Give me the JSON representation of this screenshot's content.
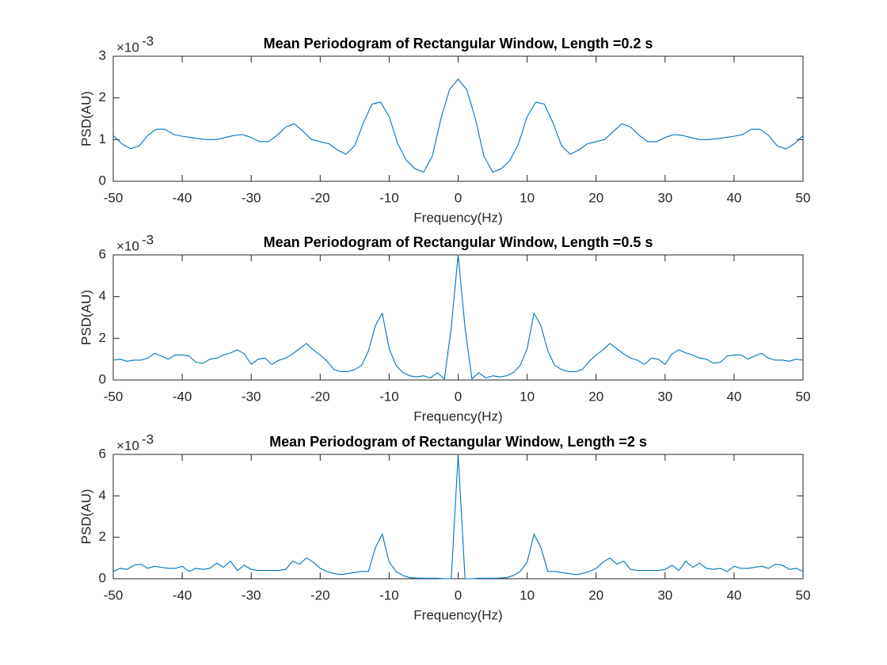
{
  "chart_data": [
    {
      "type": "line",
      "title": "Mean Periodogram of Rectangular Window, Length =0.2 s",
      "xlabel": "Frequency(Hz)",
      "ylabel": "PSD(AU)",
      "y_scale_base": "×10",
      "y_scale_exponent": "-3",
      "color": "#0072bd",
      "x": [
        -50,
        -48.75,
        -47.5,
        -46.25,
        -45,
        -43.75,
        -42.5,
        -41.25,
        -40,
        -38.75,
        -37.5,
        -36.25,
        -35,
        -33.75,
        -32.5,
        -31.25,
        -30,
        -28.75,
        -27.5,
        -26.25,
        -25,
        -23.75,
        -22.5,
        -21.25,
        -20,
        -18.75,
        -17.5,
        -16.25,
        -15,
        -13.75,
        -12.5,
        -11.25,
        -10,
        -8.75,
        -7.5,
        -6.25,
        -5,
        -3.75,
        -2.5,
        -1.25,
        0,
        1.25,
        2.5,
        3.75,
        5,
        6.25,
        7.5,
        8.75,
        10,
        11.25,
        12.5,
        13.75,
        15,
        16.25,
        17.5,
        18.75,
        20,
        21.25,
        22.5,
        23.75,
        25,
        26.25,
        27.5,
        28.75,
        30,
        31.25,
        32.5,
        33.75,
        35,
        36.25,
        37.5,
        38.75,
        40,
        41.25,
        42.5,
        43.75,
        45,
        46.25,
        47.5,
        48.75,
        50
      ],
      "values": [
        1.1,
        0.9,
        0.78,
        0.85,
        1.1,
        1.25,
        1.25,
        1.12,
        1.08,
        1.05,
        1.02,
        1.0,
        1.0,
        1.05,
        1.1,
        1.12,
        1.05,
        0.95,
        0.95,
        1.1,
        1.3,
        1.38,
        1.2,
        1.0,
        0.95,
        0.9,
        0.75,
        0.65,
        0.85,
        1.4,
        1.85,
        1.9,
        1.55,
        0.9,
        0.5,
        0.3,
        0.22,
        0.6,
        1.5,
        2.2,
        2.45,
        2.2,
        1.5,
        0.6,
        0.22,
        0.3,
        0.5,
        0.9,
        1.55,
        1.9,
        1.85,
        1.4,
        0.85,
        0.65,
        0.75,
        0.9,
        0.95,
        1.0,
        1.2,
        1.38,
        1.3,
        1.1,
        0.95,
        0.95,
        1.05,
        1.12,
        1.1,
        1.05,
        1.0,
        1.0,
        1.02,
        1.05,
        1.08,
        1.12,
        1.25,
        1.25,
        1.1,
        0.85,
        0.78,
        0.9,
        1.1
      ],
      "xlim": [
        -50,
        50
      ],
      "xticks": [
        -50,
        -40,
        -30,
        -20,
        -10,
        0,
        10,
        20,
        30,
        40,
        50
      ],
      "ylim": [
        0,
        3
      ],
      "yticks": [
        0,
        1,
        2,
        3
      ],
      "grid": false
    },
    {
      "type": "line",
      "title": "Mean Periodogram of Rectangular Window, Length =0.5 s",
      "xlabel": "Frequency(Hz)",
      "ylabel": "PSD(AU)",
      "y_scale_base": "×10",
      "y_scale_exponent": "-3",
      "color": "#0072bd",
      "x": [
        -50,
        -49,
        -48,
        -47,
        -46,
        -45,
        -44,
        -43,
        -42,
        -41,
        -40,
        -39,
        -38,
        -37,
        -36,
        -35,
        -34,
        -33,
        -32,
        -31,
        -30,
        -29,
        -28,
        -27,
        -26,
        -25,
        -24,
        -23,
        -22,
        -21,
        -20,
        -19,
        -18,
        -17,
        -16,
        -15,
        -14,
        -13,
        -12,
        -11,
        -10,
        -9,
        -8,
        -7,
        -6,
        -5,
        -4,
        -3,
        -2,
        -1,
        0,
        1,
        2,
        3,
        4,
        5,
        6,
        7,
        8,
        9,
        10,
        11,
        12,
        13,
        14,
        15,
        16,
        17,
        18,
        19,
        20,
        21,
        22,
        23,
        24,
        25,
        26,
        27,
        28,
        29,
        30,
        31,
        32,
        33,
        34,
        35,
        36,
        37,
        38,
        39,
        40,
        41,
        42,
        43,
        44,
        45,
        46,
        47,
        48,
        49,
        50
      ],
      "values": [
        0.95,
        1.0,
        0.9,
        0.95,
        0.95,
        1.05,
        1.28,
        1.15,
        1.0,
        1.2,
        1.2,
        1.15,
        0.85,
        0.8,
        1.0,
        1.05,
        1.2,
        1.3,
        1.45,
        1.25,
        0.75,
        1.0,
        1.05,
        0.75,
        0.95,
        1.05,
        1.25,
        1.5,
        1.75,
        1.45,
        1.2,
        0.9,
        0.5,
        0.4,
        0.4,
        0.5,
        0.7,
        1.4,
        2.6,
        3.2,
        1.5,
        0.7,
        0.35,
        0.2,
        0.15,
        0.2,
        0.1,
        0.35,
        0.05,
        2.5,
        6.0,
        2.5,
        0.05,
        0.35,
        0.1,
        0.2,
        0.15,
        0.2,
        0.35,
        0.7,
        1.5,
        3.2,
        2.6,
        1.4,
        0.7,
        0.5,
        0.4,
        0.4,
        0.5,
        0.9,
        1.2,
        1.45,
        1.75,
        1.5,
        1.25,
        1.05,
        0.95,
        0.75,
        1.05,
        1.0,
        0.75,
        1.25,
        1.45,
        1.3,
        1.2,
        1.05,
        1.0,
        0.8,
        0.85,
        1.15,
        1.2,
        1.2,
        1.0,
        1.15,
        1.28,
        1.05,
        0.95,
        0.95,
        0.9,
        1.0,
        0.95
      ],
      "xlim": [
        -50,
        50
      ],
      "xticks": [
        -50,
        -40,
        -30,
        -20,
        -10,
        0,
        10,
        20,
        30,
        40,
        50
      ],
      "ylim": [
        0,
        6
      ],
      "yticks": [
        0,
        2,
        4,
        6
      ],
      "grid": false
    },
    {
      "type": "line",
      "title": "Mean Periodogram of Rectangular Window, Length =2 s",
      "xlabel": "Frequency(Hz)",
      "ylabel": "PSD(AU)",
      "y_scale_base": "×10",
      "y_scale_exponent": "-3",
      "color": "#0072bd",
      "x": [
        -50,
        -49,
        -48,
        -47,
        -46,
        -45,
        -44,
        -43,
        -42,
        -41,
        -40,
        -39,
        -38,
        -37,
        -36,
        -35,
        -34,
        -33,
        -32,
        -31,
        -30,
        -29,
        -28,
        -27,
        -26,
        -25,
        -24,
        -23,
        -22,
        -21,
        -20,
        -19,
        -18,
        -17,
        -16,
        -15,
        -14,
        -13,
        -12,
        -11,
        -10,
        -9,
        -8,
        -7,
        -6,
        -5,
        -4,
        -3,
        -2,
        -1,
        0,
        1,
        2,
        3,
        4,
        5,
        6,
        7,
        8,
        9,
        10,
        11,
        12,
        13,
        14,
        15,
        16,
        17,
        18,
        19,
        20,
        21,
        22,
        23,
        24,
        25,
        26,
        27,
        28,
        29,
        30,
        31,
        32,
        33,
        34,
        35,
        36,
        37,
        38,
        39,
        40,
        41,
        42,
        43,
        44,
        45,
        46,
        47,
        48,
        49,
        50
      ],
      "values": [
        0.35,
        0.5,
        0.45,
        0.65,
        0.7,
        0.5,
        0.6,
        0.55,
        0.5,
        0.5,
        0.6,
        0.35,
        0.5,
        0.45,
        0.5,
        0.75,
        0.55,
        0.85,
        0.4,
        0.65,
        0.45,
        0.4,
        0.4,
        0.4,
        0.4,
        0.45,
        0.85,
        0.7,
        1.0,
        0.8,
        0.5,
        0.35,
        0.25,
        0.2,
        0.25,
        0.3,
        0.35,
        0.35,
        1.5,
        2.15,
        0.8,
        0.35,
        0.15,
        0.05,
        0.03,
        0.02,
        0.02,
        0.02,
        0.0,
        0.0,
        6.0,
        0.0,
        0.0,
        0.02,
        0.02,
        0.02,
        0.03,
        0.05,
        0.15,
        0.35,
        0.8,
        2.15,
        1.5,
        0.35,
        0.35,
        0.3,
        0.25,
        0.2,
        0.25,
        0.35,
        0.5,
        0.8,
        1.0,
        0.7,
        0.85,
        0.45,
        0.4,
        0.4,
        0.4,
        0.4,
        0.45,
        0.65,
        0.4,
        0.85,
        0.55,
        0.75,
        0.5,
        0.45,
        0.5,
        0.35,
        0.6,
        0.5,
        0.5,
        0.55,
        0.6,
        0.5,
        0.7,
        0.65,
        0.45,
        0.5,
        0.35
      ],
      "xlim": [
        -50,
        50
      ],
      "xticks": [
        -50,
        -40,
        -30,
        -20,
        -10,
        0,
        10,
        20,
        30,
        40,
        50
      ],
      "ylim": [
        0,
        6
      ],
      "yticks": [
        0,
        2,
        4,
        6
      ],
      "grid": false
    }
  ]
}
